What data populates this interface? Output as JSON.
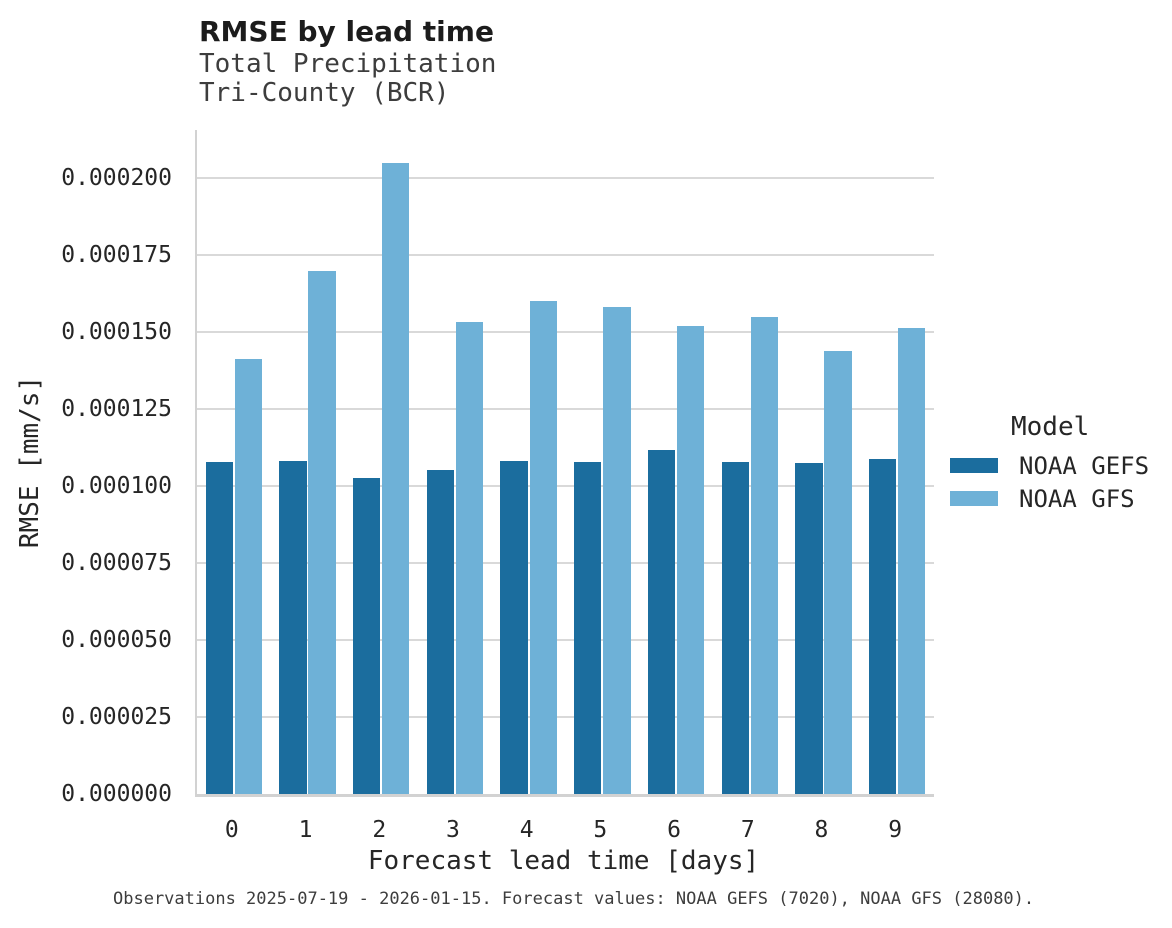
{
  "header": {
    "title": "RMSE by lead time",
    "subtitle_line1": "Total Precipitation",
    "subtitle_line2": "Tri-County (BCR)"
  },
  "chart_data": {
    "type": "bar",
    "title": "RMSE by lead time",
    "subtitle": "Total Precipitation — Tri-County (BCR)",
    "categories": [
      "0",
      "1",
      "2",
      "3",
      "4",
      "5",
      "6",
      "7",
      "8",
      "9"
    ],
    "series": [
      {
        "name": "NOAA GEFS",
        "color": "#1b6d9e",
        "values": [
          0.0001076,
          0.0001081,
          0.0001025,
          0.0001053,
          0.0001081,
          0.0001076,
          0.0001115,
          0.0001078,
          0.0001074,
          0.0001086
        ]
      },
      {
        "name": "NOAA GFS",
        "color": "#6eb1d7",
        "values": [
          0.0001413,
          0.0001697,
          0.0002049,
          0.0001532,
          0.0001601,
          0.0001581,
          0.000152,
          0.0001549,
          0.0001437,
          0.0001514
        ]
      }
    ],
    "xlabel": "Forecast lead time [days]",
    "ylabel": "RMSE [mm/s]",
    "ylim": [
      0,
      0.0002155
    ],
    "yticks": [
      0,
      2.5e-05,
      5e-05,
      7.5e-05,
      0.0001,
      0.000125,
      0.00015,
      0.000175,
      0.0002
    ],
    "ytick_decimals": 6,
    "grid": "horizontal",
    "grid_color": "#d9d9d9",
    "axis_color": "#d2d2d2",
    "legend_position": "right"
  },
  "legend": {
    "title": "Model"
  },
  "caption": {
    "text": "Observations 2025-07-19 - 2026-01-15. Forecast values: NOAA GEFS (7020), NOAA GFS (28080)."
  }
}
